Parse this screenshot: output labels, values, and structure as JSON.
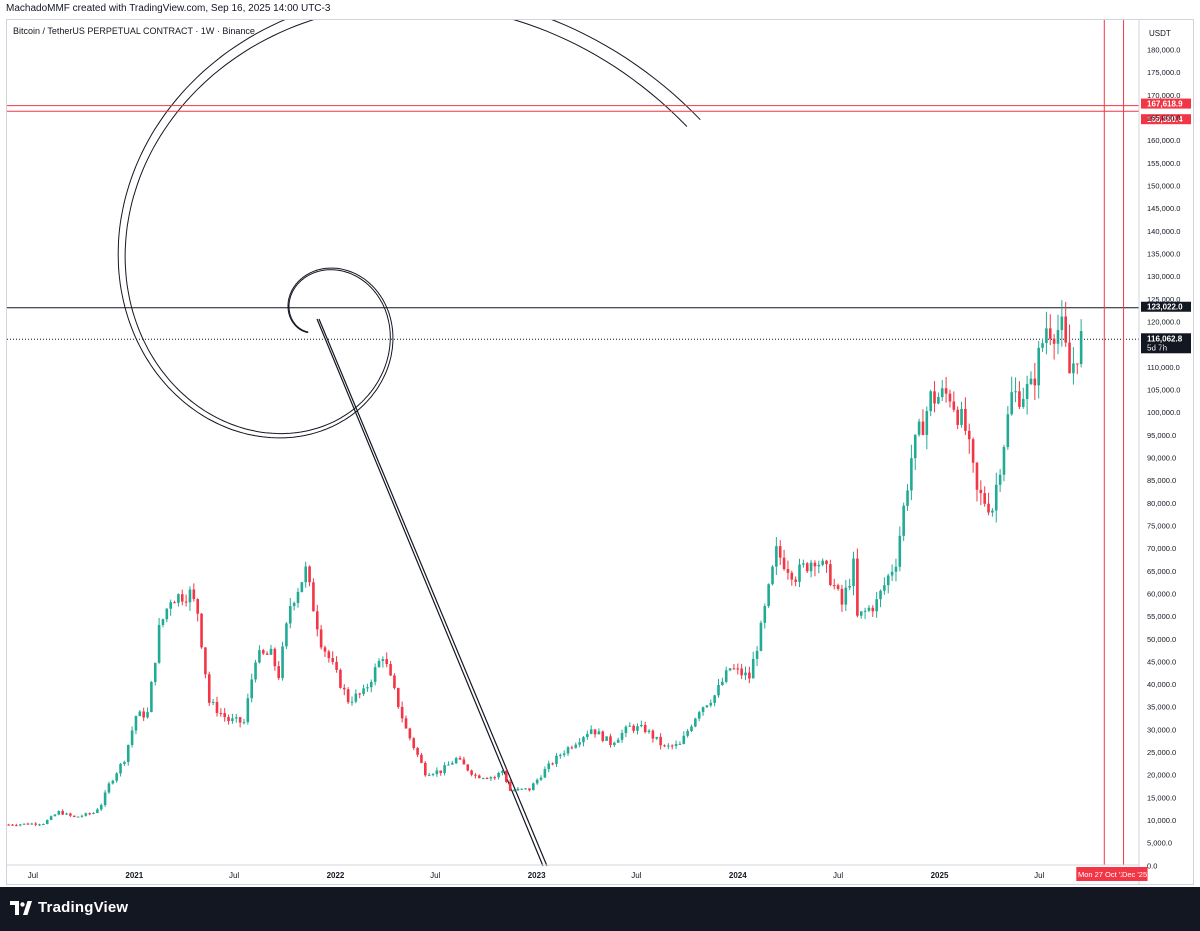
{
  "header": {
    "attribution": "MachadoMMF created with TradingView.com, Sep 16, 2025 14:00 UTC-3"
  },
  "footer": {
    "brand": "TradingView",
    "logo_icon": "tradingview-logo-icon",
    "background": "#131722"
  },
  "colors": {
    "bull": "#22ab94",
    "bear": "#f23645",
    "accent_red": "#f23645",
    "dark": "#131722",
    "text_muted": "#131722"
  },
  "chart_data": {
    "type": "candlestick",
    "title": "Bitcoin / TetherUS PERPETUAL CONTRACT · 1W · Binance",
    "currency": "USDT",
    "ylim": [
      0,
      185000
    ],
    "y_ticks": [
      0,
      5000,
      10000,
      15000,
      20000,
      25000,
      30000,
      35000,
      40000,
      45000,
      50000,
      55000,
      60000,
      65000,
      70000,
      75000,
      80000,
      85000,
      90000,
      95000,
      100000,
      105000,
      110000,
      115000,
      120000,
      125000,
      130000,
      135000,
      140000,
      145000,
      150000,
      155000,
      160000,
      165000,
      170000,
      175000,
      180000
    ],
    "y_tick_labels": [
      "0.0",
      "5,000.0",
      "10,000.0",
      "15,000.0",
      "20,000.0",
      "25,000.0",
      "30,000.0",
      "35,000.0",
      "40,000.0",
      "45,000.0",
      "50,000.0",
      "55,000.0",
      "60,000.0",
      "65,000.0",
      "70,000.0",
      "75,000.0",
      "80,000.0",
      "85,000.0",
      "90,000.0",
      "95,000.0",
      "100,000.0",
      "105,000.0",
      "110,000.0",
      "115,000.0",
      "120,000.0",
      "125,000.0",
      "130,000.0",
      "135,000.0",
      "140,000.0",
      "145,000.0",
      "150,000.0",
      "155,000.0",
      "160,000.0",
      "165,000.0",
      "170,000.0",
      "175,000.0",
      "180,000.0"
    ],
    "x_range": [
      "2020-05-15",
      "2025-12-29"
    ],
    "x_ticks": [
      {
        "date": "2020-07-01",
        "label": "Jul"
      },
      {
        "date": "2021-01-01",
        "label": "2021"
      },
      {
        "date": "2021-07-01",
        "label": "Jul"
      },
      {
        "date": "2022-01-01",
        "label": "2022"
      },
      {
        "date": "2022-07-01",
        "label": "Jul"
      },
      {
        "date": "2023-01-01",
        "label": "2023"
      },
      {
        "date": "2023-07-01",
        "label": "Jul"
      },
      {
        "date": "2024-01-01",
        "label": "2024"
      },
      {
        "date": "2024-07-01",
        "label": "Jul"
      },
      {
        "date": "2025-01-01",
        "label": "2025"
      },
      {
        "date": "2025-07-01",
        "label": "Jul"
      },
      {
        "date": "2025-12-01",
        "label": "Dec '25"
      }
    ],
    "price_path": [
      [
        "2020-05-18",
        9000
      ],
      [
        "2020-07-20",
        9300
      ],
      [
        "2020-08-17",
        11800
      ],
      [
        "2020-09-14",
        10600
      ],
      [
        "2020-10-19",
        11600
      ],
      [
        "2020-11-02",
        13500
      ],
      [
        "2020-11-16",
        17800
      ],
      [
        "2020-12-14",
        23500
      ],
      [
        "2021-01-04",
        33000
      ],
      [
        "2021-01-25",
        33500
      ],
      [
        "2021-02-15",
        52000
      ],
      [
        "2021-03-08",
        59000
      ],
      [
        "2021-04-12",
        60000
      ],
      [
        "2021-04-26",
        56000
      ],
      [
        "2021-05-17",
        36000
      ],
      [
        "2021-06-21",
        32000
      ],
      [
        "2021-07-19",
        31500
      ],
      [
        "2021-08-09",
        46000
      ],
      [
        "2021-09-06",
        46500
      ],
      [
        "2021-09-20",
        42000
      ],
      [
        "2021-10-11",
        57500
      ],
      [
        "2021-11-08",
        65000
      ],
      [
        "2021-11-22",
        57000
      ],
      [
        "2021-12-06",
        49500
      ],
      [
        "2022-01-03",
        42000
      ],
      [
        "2022-01-24",
        36500
      ],
      [
        "2022-02-21",
        38000
      ],
      [
        "2022-03-28",
        46500
      ],
      [
        "2022-05-09",
        30000
      ],
      [
        "2022-06-13",
        20500
      ],
      [
        "2022-07-11",
        20800
      ],
      [
        "2022-08-08",
        23500
      ],
      [
        "2022-09-12",
        19800
      ],
      [
        "2022-10-17",
        19500
      ],
      [
        "2022-10-31",
        20900
      ],
      [
        "2022-11-14",
        16500
      ],
      [
        "2022-12-19",
        16800
      ],
      [
        "2023-01-16",
        21000
      ],
      [
        "2023-02-13",
        24500
      ],
      [
        "2023-03-20",
        28000
      ],
      [
        "2023-04-10",
        30200
      ],
      [
        "2023-05-15",
        27000
      ],
      [
        "2023-06-19",
        30500
      ],
      [
        "2023-07-17",
        30000
      ],
      [
        "2023-08-21",
        26000
      ],
      [
        "2023-09-18",
        26500
      ],
      [
        "2023-10-23",
        34500
      ],
      [
        "2023-11-20",
        37500
      ],
      [
        "2023-12-18",
        43500
      ],
      [
        "2024-01-22",
        41500
      ],
      [
        "2024-02-12",
        52000
      ],
      [
        "2024-03-11",
        69000
      ],
      [
        "2024-04-15",
        64000
      ],
      [
        "2024-05-20",
        68000
      ],
      [
        "2024-06-17",
        63500
      ],
      [
        "2024-07-08",
        57500
      ],
      [
        "2024-07-29",
        66000
      ],
      [
        "2024-08-05",
        54500
      ],
      [
        "2024-09-09",
        58000
      ],
      [
        "2024-10-14",
        67500
      ],
      [
        "2024-11-11",
        90000
      ],
      [
        "2024-12-16",
        103000
      ],
      [
        "2025-01-20",
        104000
      ],
      [
        "2025-02-17",
        96000
      ],
      [
        "2025-03-10",
        82000
      ],
      [
        "2025-04-07",
        79000
      ],
      [
        "2025-05-12",
        103500
      ],
      [
        "2025-06-16",
        105000
      ],
      [
        "2025-07-14",
        119000
      ],
      [
        "2025-08-11",
        118000
      ],
      [
        "2025-08-25",
        108500
      ],
      [
        "2025-09-15",
        116000
      ]
    ],
    "horizontal_lines": [
      {
        "price": 123022.0,
        "label": "123,022.0",
        "style": "solid",
        "color": "#131722"
      },
      {
        "price": 167618.9,
        "label": "167,618.9",
        "style": "solid",
        "color": "#f23645"
      },
      {
        "price": 166380.4,
        "label": "166,380.4",
        "style": "solid",
        "color": "#f23645"
      },
      {
        "price": 116062.8,
        "label": "116,062.8",
        "style": "dotted",
        "color": "#131722",
        "sub": "5d 7h"
      }
    ],
    "vertical_lines": [
      {
        "date": "2025-10-27",
        "label": "Mon 27 Oct '25",
        "color": "#f23645"
      },
      {
        "date": "2025-12-01",
        "label": "Dec '25",
        "color": "#f23645"
      }
    ],
    "spiral_drawing": {
      "color": "#131722",
      "style": "double-line spiral with diagonal line"
    }
  }
}
